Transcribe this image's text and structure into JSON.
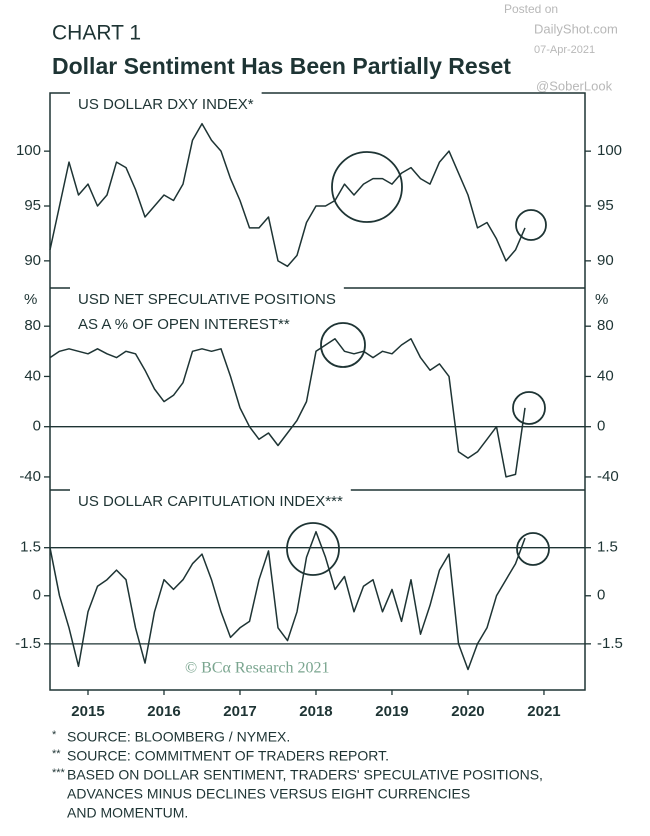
{
  "header": {
    "kicker": "CHART 1",
    "title": "Dollar Sentiment Has Been Partially Reset"
  },
  "watermark": {
    "posted": "Posted on",
    "site": "DailyShot.com",
    "date": "07-Apr-2021",
    "handle": "@SoberLook"
  },
  "copyright": "© BCα Research 2021",
  "chart_data": [
    {
      "type": "line",
      "title_lines": [
        "US DOLLAR DXY INDEX*"
      ],
      "color": "#1e3434",
      "x": [
        2015,
        2015.125,
        2015.25,
        2015.375,
        2015.5,
        2015.625,
        2015.75,
        2015.875,
        2016,
        2016.125,
        2016.25,
        2016.375,
        2016.5,
        2016.625,
        2016.75,
        2016.875,
        2017,
        2017.125,
        2017.25,
        2017.375,
        2017.5,
        2017.625,
        2017.75,
        2017.875,
        2018,
        2018.125,
        2018.25,
        2018.375,
        2018.5,
        2018.625,
        2018.75,
        2018.875,
        2019,
        2019.125,
        2019.25,
        2019.375,
        2019.5,
        2019.625,
        2019.75,
        2019.875,
        2020,
        2020.125,
        2020.25,
        2020.375,
        2020.5,
        2020.625,
        2020.75,
        2020.875,
        2021,
        2021.125,
        2021.25
      ],
      "values": [
        91,
        95,
        99,
        96,
        97,
        95,
        96,
        99,
        98.5,
        96.5,
        94,
        95,
        96,
        95.5,
        97,
        101,
        102.5,
        101,
        100,
        97.5,
        95.5,
        93,
        93,
        94,
        90,
        89.5,
        90.5,
        93.5,
        95,
        95,
        95.5,
        97,
        96,
        97,
        97.5,
        97.5,
        97,
        98,
        98.5,
        97.5,
        97,
        99,
        100,
        98,
        96,
        93,
        93.5,
        92,
        90,
        91,
        93
      ],
      "xlim": [
        2015,
        2022.04
      ],
      "ylim": [
        87.8,
        105.3
      ],
      "yticks": [
        90,
        95,
        100
      ]
    },
    {
      "type": "line",
      "title_lines": [
        "USD NET SPECULATIVE POSITIONS",
        "AS A % OF OPEN INTEREST**"
      ],
      "y_unit": "%",
      "color": "#1e3434",
      "x": [
        2015,
        2015.125,
        2015.25,
        2015.375,
        2015.5,
        2015.625,
        2015.75,
        2015.875,
        2016,
        2016.125,
        2016.25,
        2016.375,
        2016.5,
        2016.625,
        2016.75,
        2016.875,
        2017,
        2017.125,
        2017.25,
        2017.375,
        2017.5,
        2017.625,
        2017.75,
        2017.875,
        2018,
        2018.125,
        2018.25,
        2018.375,
        2018.5,
        2018.625,
        2018.75,
        2018.875,
        2019,
        2019.125,
        2019.25,
        2019.375,
        2019.5,
        2019.625,
        2019.75,
        2019.875,
        2020,
        2020.125,
        2020.25,
        2020.375,
        2020.5,
        2020.625,
        2020.75,
        2020.875,
        2021,
        2021.125,
        2021.25
      ],
      "values": [
        55,
        60,
        62,
        60,
        58,
        62,
        58,
        55,
        60,
        58,
        45,
        30,
        20,
        25,
        35,
        60,
        62,
        60,
        62,
        40,
        15,
        0,
        -10,
        -5,
        -15,
        -5,
        5,
        20,
        60,
        65,
        70,
        60,
        58,
        60,
        55,
        60,
        58,
        65,
        70,
        55,
        45,
        50,
        40,
        -20,
        -25,
        -20,
        -10,
        0,
        -40,
        -38,
        15
      ],
      "xlim": [
        2015,
        2022.04
      ],
      "ylim": [
        -48,
        110.4
      ],
      "yticks": [
        -40,
        0,
        40,
        80
      ],
      "hlines": [
        0
      ]
    },
    {
      "type": "line",
      "title_lines": [
        "US DOLLAR CAPITULATION INDEX***"
      ],
      "color": "#1e3434",
      "x": [
        2015,
        2015.125,
        2015.25,
        2015.375,
        2015.5,
        2015.625,
        2015.75,
        2015.875,
        2016,
        2016.125,
        2016.25,
        2016.375,
        2016.5,
        2016.625,
        2016.75,
        2016.875,
        2017,
        2017.125,
        2017.25,
        2017.375,
        2017.5,
        2017.625,
        2017.75,
        2017.875,
        2018,
        2018.125,
        2018.25,
        2018.375,
        2018.5,
        2018.625,
        2018.75,
        2018.875,
        2019,
        2019.125,
        2019.25,
        2019.375,
        2019.5,
        2019.625,
        2019.75,
        2019.875,
        2020,
        2020.125,
        2020.25,
        2020.375,
        2020.5,
        2020.625,
        2020.75,
        2020.875,
        2021,
        2021.125,
        2021.25
      ],
      "values": [
        1.5,
        0,
        -1,
        -2.2,
        -0.5,
        0.3,
        0.5,
        0.8,
        0.5,
        -1,
        -2.1,
        -0.5,
        0.5,
        0.2,
        0.5,
        1.0,
        1.3,
        0.5,
        -0.5,
        -1.3,
        -1.0,
        -0.8,
        0.5,
        1.4,
        -1.0,
        -1.4,
        -0.5,
        1.2,
        2.0,
        1.2,
        0.2,
        0.6,
        -0.5,
        0.3,
        0.5,
        -0.5,
        0.2,
        -0.8,
        0.5,
        -1.2,
        -0.3,
        0.8,
        1.3,
        -1.5,
        -2.3,
        -1.5,
        -1.0,
        0.0,
        0.5,
        1.0,
        1.8
      ],
      "xlim": [
        2015,
        2022.04
      ],
      "ylim": [
        -2.94,
        3.3
      ],
      "yticks": [
        {
          "value": -1.5,
          "label": "-1.5"
        },
        0,
        {
          "value": 1.5,
          "label": "1.5"
        }
      ],
      "hlines": [
        -1.5,
        1.5
      ],
      "xticks": [
        {
          "value": 2015.5,
          "label": "2015"
        },
        {
          "value": 2016.5,
          "label": "2016"
        },
        {
          "value": 2017.5,
          "label": "2017"
        },
        {
          "value": 2018.5,
          "label": "2018"
        },
        {
          "value": 2019.5,
          "label": "2019"
        },
        {
          "value": 2020.5,
          "label": "2020"
        },
        {
          "value": 2021.5,
          "label": "2021"
        }
      ]
    }
  ],
  "notes": [
    {
      "marker": "*",
      "lines": [
        "SOURCE: BLOOMBERG / NYMEX."
      ]
    },
    {
      "marker": "**",
      "lines": [
        "SOURCE: COMMITMENT OF TRADERS REPORT."
      ]
    },
    {
      "marker": "***",
      "lines": [
        "BASED ON DOLLAR SENTIMENT, TRADERS' SPECULATIVE POSITIONS,",
        "ADVANCES MINUS DECLINES VERSUS EIGHT CURRENCIES",
        "AND MOMENTUM."
      ]
    }
  ]
}
